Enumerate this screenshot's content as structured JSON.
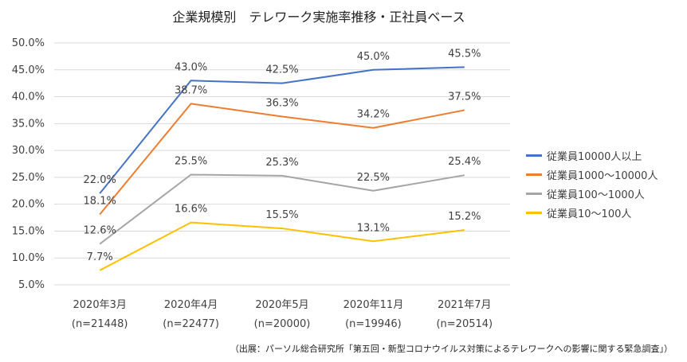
{
  "source_note": "（出展：パーソル総合研究所「第五回・新型コロナウイルス対策によるテレワークへの影響に関する緊急調査」）",
  "chart_data": {
    "type": "line",
    "title": "企業規模別　テレワーク実施率推移・正社員ベース",
    "categories": [
      "2020年3月",
      "2020年4月",
      "2020年5月",
      "2020年11月",
      "2021年7月"
    ],
    "category_sub": [
      "(n=21448)",
      "(n=22477)",
      "(n=20000)",
      "(n=19946)",
      "(n=20514)"
    ],
    "ylim": [
      5.0,
      50.0
    ],
    "yticks": [
      "5.0%",
      "10.0%",
      "15.0%",
      "20.0%",
      "25.0%",
      "30.0%",
      "35.0%",
      "40.0%",
      "45.0%",
      "50.0%"
    ],
    "grid": true,
    "legend_position": "right",
    "series": [
      {
        "name": "従業員10000人以上",
        "color": "#4472C4",
        "values": [
          22.0,
          43.0,
          42.5,
          45.0,
          45.5
        ],
        "labels": [
          "22.0%",
          "43.0%",
          "42.5%",
          "45.0%",
          "45.5%"
        ]
      },
      {
        "name": "従業員1000〜10000人",
        "color": "#ED7D31",
        "values": [
          18.1,
          38.7,
          36.3,
          34.2,
          37.5
        ],
        "labels": [
          "18.1%",
          "38.7%",
          "36.3%",
          "34.2%",
          "37.5%"
        ]
      },
      {
        "name": "従業員100〜1000人",
        "color": "#A5A5A5",
        "values": [
          12.6,
          25.5,
          25.3,
          22.5,
          25.4
        ],
        "labels": [
          "12.6%",
          "25.5%",
          "25.3%",
          "22.5%",
          "25.4%"
        ]
      },
      {
        "name": "従業員10〜100人",
        "color": "#FFC000",
        "values": [
          7.7,
          16.6,
          15.5,
          13.1,
          15.2
        ],
        "labels": [
          "7.7%",
          "16.6%",
          "15.5%",
          "13.1%",
          "15.2%"
        ]
      }
    ]
  }
}
